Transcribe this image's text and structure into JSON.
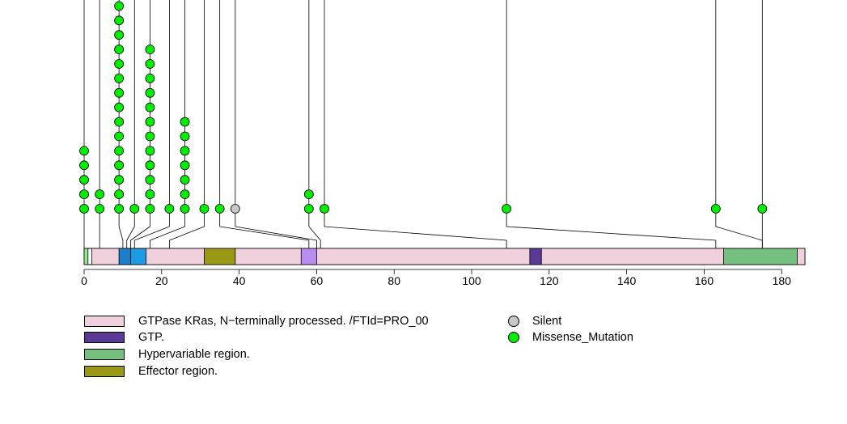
{
  "chart_data": {
    "type": "lollipop",
    "title": "",
    "xlabel": "",
    "ylabel": "",
    "xlim": [
      0,
      186
    ],
    "x_ticks": [
      0,
      20,
      40,
      60,
      80,
      100,
      120,
      140,
      160,
      180
    ],
    "protein_length": 186,
    "domains": [
      {
        "name": "GTPase KRas, N−terminally processed. /FTId=PRO_00",
        "start": 2,
        "end": 186,
        "color": "#f0d0dc"
      },
      {
        "name": "GTP.",
        "start": 115,
        "end": 118,
        "color": "#5a3a96"
      },
      {
        "name": "Hypervariable region.",
        "start": 165,
        "end": 184,
        "color": "#76c07f"
      },
      {
        "name": "Effector region.",
        "start": 31,
        "end": 39,
        "color": "#999915"
      },
      {
        "name": "unlabeled-light-green",
        "start": 0,
        "end": 1,
        "color": "#90e890"
      },
      {
        "name": "unlabeled-blue-a",
        "start": 9,
        "end": 12,
        "color": "#1a7ec8"
      },
      {
        "name": "unlabeled-blue-b",
        "start": 12,
        "end": 16,
        "color": "#1e9ae0"
      },
      {
        "name": "unlabeled-lavender",
        "start": 56,
        "end": 60,
        "color": "#b98cf0"
      }
    ],
    "mutations": [
      {
        "position": 0,
        "count": 5,
        "type": "Missense_Mutation"
      },
      {
        "position": 4,
        "count": 2,
        "type": "Missense_Mutation"
      },
      {
        "position": 9,
        "count": 15,
        "type": "Missense_Mutation"
      },
      {
        "position": 13,
        "count": 1,
        "type": "Missense_Mutation"
      },
      {
        "position": 17,
        "count": 12,
        "type": "Missense_Mutation"
      },
      {
        "position": 22,
        "count": 1,
        "type": "Missense_Mutation"
      },
      {
        "position": 26,
        "count": 7,
        "type": "Missense_Mutation"
      },
      {
        "position": 31,
        "count": 1,
        "type": "Missense_Mutation"
      },
      {
        "position": 35,
        "count": 1,
        "type": "Missense_Mutation"
      },
      {
        "position": 39,
        "count": 1,
        "type": "Silent"
      },
      {
        "position": 58,
        "count": 2,
        "type": "Missense_Mutation"
      },
      {
        "position": 62,
        "count": 1,
        "type": "Missense_Mutation"
      },
      {
        "position": 109,
        "count": 1,
        "type": "Missense_Mutation"
      },
      {
        "position": 163,
        "count": 1,
        "type": "Missense_Mutation"
      },
      {
        "position": 175,
        "count": 1,
        "type": "Missense_Mutation"
      }
    ],
    "mutation_protein_positions": [
      0,
      4,
      10,
      11,
      12,
      13,
      17,
      22,
      58,
      60,
      61,
      109,
      163,
      175
    ],
    "legend_domains": [
      {
        "label": "GTPase KRas, N−terminally processed. /FTId=PRO_00",
        "color": "#f0d0dc"
      },
      {
        "label": "GTP.",
        "color": "#5a3a96"
      },
      {
        "label": "Hypervariable region.",
        "color": "#76c07f"
      },
      {
        "label": "Effector region.",
        "color": "#999915"
      }
    ],
    "legend_mutations": [
      {
        "label": "Silent",
        "color": "#c8c8c8"
      },
      {
        "label": "Missense_Mutation",
        "color": "#00ee00"
      }
    ]
  }
}
